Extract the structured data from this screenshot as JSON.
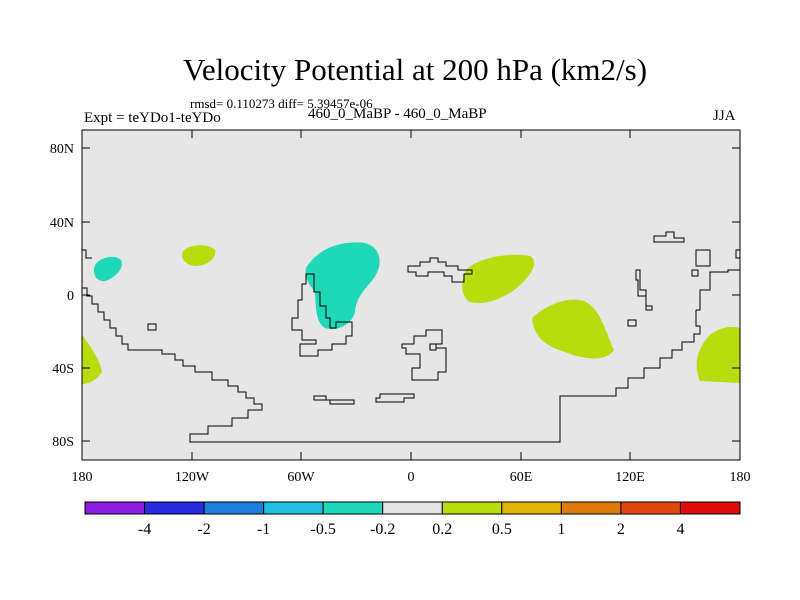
{
  "title": "Velocity Potential at 200 hPa (km2/s)",
  "stats_line": "rmsd= 0.110273 diff= 5.39457e-06",
  "left_label": "Expt = teYDo1-teYDo",
  "center_label": "460_0_MaBP - 460_0_MaBP",
  "right_label": "JJA",
  "map": {
    "lat_ticks": [
      "80N",
      "40N",
      "0",
      "40S",
      "80S"
    ],
    "lon_ticks": [
      "180",
      "120W",
      "60W",
      "0",
      "60E",
      "120E",
      "180"
    ]
  },
  "colorbar": {
    "colors": [
      "#8a1ee0",
      "#2a2ae0",
      "#1e7ee0",
      "#1ebfe0",
      "#1ed8b8",
      "#e6e6e6",
      "#b8dc0e",
      "#e0b40a",
      "#e07a0e",
      "#e0460e",
      "#e00c0c"
    ],
    "labels": [
      "-4",
      "-2",
      "-1",
      "-0.5",
      "-0.2",
      "0.2",
      "0.5",
      "1",
      "2",
      "4"
    ]
  },
  "colors": {
    "background": "#e6e6e6",
    "negative_anomaly": "#1ed8b8",
    "positive_anomaly": "#b8dc0e"
  }
}
